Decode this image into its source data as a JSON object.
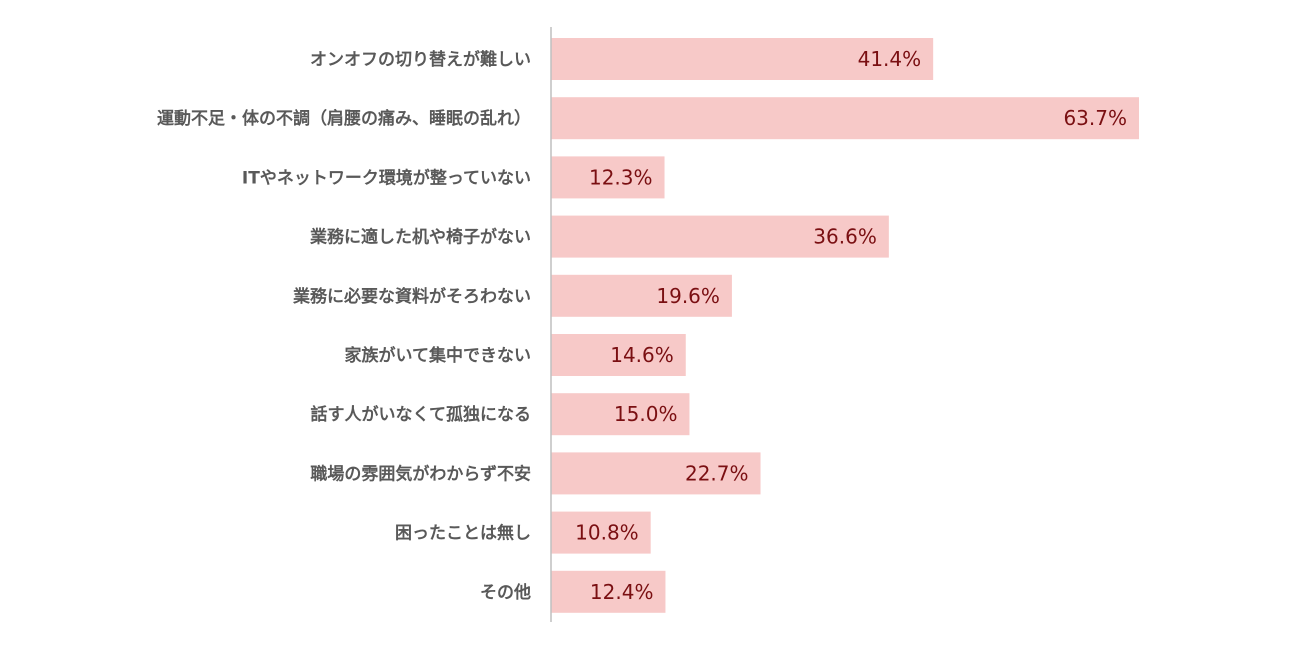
{
  "chart_data": {
    "type": "bar",
    "orientation": "horizontal",
    "categories": [
      "オンオフの切り替えが難しい",
      "運動不足・体の不調（肩腰の痛み、睡眠の乱れ）",
      "ITやネットワーク環境が整っていない",
      "業務に適した机や椅子がない",
      "業務に必要な資料がそろわない",
      "家族がいて集中できない",
      "話す人がいなくて孤独になる",
      "職場の雰囲気がわからず不安",
      "困ったことは無し",
      "その他"
    ],
    "values": [
      41.4,
      63.7,
      12.3,
      36.6,
      19.6,
      14.6,
      15.0,
      22.7,
      10.8,
      12.4
    ],
    "value_labels": [
      "41.4%",
      "63.7%",
      "12.3%",
      "36.6%",
      "19.6%",
      "14.6%",
      "15.0%",
      "22.7%",
      "10.8%",
      "12.4%"
    ],
    "xlim": [
      0,
      80
    ],
    "grid": false,
    "legend": "none",
    "colors": {
      "bar": "#f7c9c8",
      "value_label": "#7a0f12",
      "category_label": "#595959",
      "axis": "#bfbfbf"
    }
  }
}
